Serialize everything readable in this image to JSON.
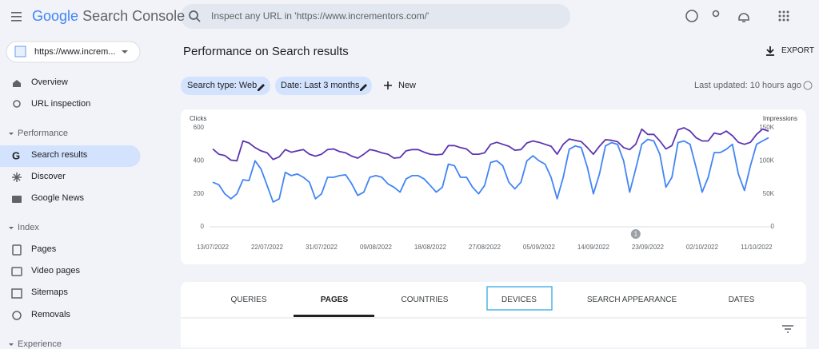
{
  "header": {
    "logo": "Google",
    "product": "Search Console",
    "search_placeholder": "Inspect any URL in 'https://www.incrementors.com/'"
  },
  "property": "https://www.increm...",
  "nav": {
    "overview": "Overview",
    "url_inspection": "URL inspection",
    "performance": "Performance",
    "search_results": "Search results",
    "discover": "Discover",
    "google_news": "Google News",
    "index": "Index",
    "pages": "Pages",
    "video_pages": "Video pages",
    "sitemaps": "Sitemaps",
    "removals": "Removals",
    "experience": "Experience"
  },
  "page": {
    "title": "Performance on Search results",
    "export": "EXPORT",
    "filters": [
      "Search type: Web",
      "Date: Last 3 months"
    ],
    "new": "New",
    "last_updated": "Last updated: 10 hours ago"
  },
  "tabs": [
    "QUERIES",
    "PAGES",
    "COUNTRIES",
    "DEVICES",
    "SEARCH APPEARANCE",
    "DATES"
  ],
  "chart_data": {
    "type": "line",
    "categories": [
      "13/07/2022",
      null,
      null,
      null,
      null,
      null,
      null,
      null,
      null,
      "22/07/2022",
      null,
      null,
      null,
      null,
      null,
      null,
      null,
      null,
      "31/07/2022",
      null,
      null,
      null,
      null,
      null,
      null,
      null,
      null,
      "09/08/2022",
      null,
      null,
      null,
      null,
      null,
      null,
      null,
      null,
      "18/08/2022",
      null,
      null,
      null,
      null,
      null,
      null,
      null,
      null,
      "27/08/2022",
      null,
      null,
      null,
      null,
      null,
      null,
      null,
      null,
      "05/09/2022",
      null,
      null,
      null,
      null,
      null,
      null,
      null,
      null,
      "14/09/2022",
      null,
      null,
      null,
      null,
      null,
      null,
      null,
      null,
      "23/09/2022",
      null,
      null,
      null,
      null,
      null,
      null,
      null,
      null,
      "02/10/2022",
      null,
      null,
      null,
      null,
      null,
      null,
      null,
      null,
      "11/10/2022",
      null,
      null
    ],
    "series": [
      {
        "name": "Clicks",
        "color": "#4285f4",
        "values": [
          270,
          255,
          200,
          170,
          200,
          285,
          280,
          400,
          350,
          250,
          150,
          170,
          330,
          310,
          320,
          300,
          270,
          170,
          200,
          300,
          300,
          310,
          315,
          260,
          190,
          210,
          300,
          310,
          300,
          260,
          240,
          210,
          290,
          310,
          310,
          290,
          250,
          210,
          240,
          380,
          370,
          300,
          300,
          240,
          200,
          250,
          390,
          400,
          370,
          270,
          230,
          270,
          400,
          430,
          400,
          380,
          300,
          170,
          300,
          470,
          490,
          480,
          360,
          200,
          320,
          490,
          510,
          500,
          400,
          210,
          350,
          500,
          530,
          520,
          440,
          240,
          300,
          510,
          520,
          500,
          360,
          210,
          300,
          450,
          450,
          470,
          500,
          320,
          220,
          370,
          500,
          520,
          540
        ]
      },
      {
        "name": "Impressions",
        "color": "#5e35b1",
        "axis": "y2",
        "values": [
          118000,
          110000,
          108000,
          101000,
          100000,
          130000,
          127000,
          120000,
          115000,
          112000,
          102000,
          106000,
          117000,
          113000,
          115000,
          117000,
          110000,
          107000,
          110000,
          117000,
          118000,
          114000,
          112000,
          107000,
          104000,
          110000,
          117000,
          115000,
          112000,
          110000,
          104000,
          105000,
          115000,
          117000,
          117000,
          113000,
          110000,
          109000,
          110000,
          123000,
          123000,
          120000,
          118000,
          110000,
          110000,
          112000,
          125000,
          128000,
          125000,
          122000,
          116000,
          117000,
          127000,
          130000,
          128000,
          125000,
          122000,
          110000,
          125000,
          133000,
          131000,
          129000,
          120000,
          110000,
          122000,
          132000,
          131000,
          129000,
          120000,
          117000,
          125000,
          148000,
          140000,
          140000,
          130000,
          118000,
          123000,
          147000,
          150000,
          145000,
          135000,
          130000,
          130000,
          142000,
          140000,
          145000,
          138000,
          128000,
          125000,
          128000,
          140000,
          148000,
          145000
        ]
      }
    ],
    "ylim": [
      0,
      600
    ],
    "yticks": [
      0,
      200,
      400,
      600
    ],
    "y2lim": [
      0,
      150000
    ],
    "y2ticks": [
      0,
      {
        "value": 50000,
        "label": "50K"
      },
      {
        "value": 100000,
        "label": "100K"
      },
      {
        "value": 150000,
        "label": "150K"
      }
    ],
    "grid": false,
    "annotations": [
      {
        "label": "1",
        "date": "21/09/2022"
      }
    ]
  }
}
